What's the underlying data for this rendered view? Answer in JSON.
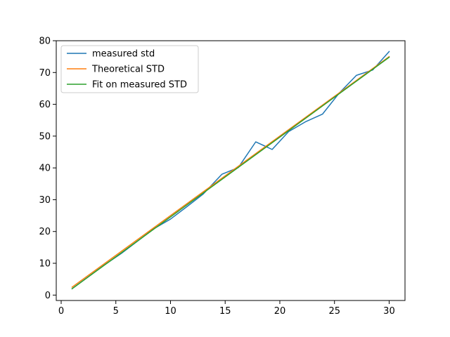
{
  "chart_data": {
    "type": "line",
    "title": "",
    "xlabel": "",
    "ylabel": "",
    "xlim": [
      -0.45,
      31.45
    ],
    "ylim": [
      -1.7,
      80
    ],
    "x_ticks": [
      0,
      5,
      10,
      15,
      20,
      25,
      30
    ],
    "y_ticks": [
      0,
      10,
      20,
      30,
      40,
      50,
      60,
      70,
      80
    ],
    "grid": false,
    "legend_position": "upper-left",
    "series": [
      {
        "name": "measured std",
        "color": "#1f77b4",
        "x": [
          1,
          2.5,
          4,
          5.5,
          7,
          8.5,
          10,
          11.5,
          13,
          14.7,
          16.2,
          17.8,
          19.3,
          20.8,
          22.4,
          23.9,
          25.4,
          27,
          28.5,
          30
        ],
        "y": [
          2.0,
          5.8,
          9.6,
          13.1,
          17.0,
          20.9,
          23.9,
          27.8,
          31.8,
          38.0,
          40.1,
          48.2,
          45.8,
          51.4,
          54.6,
          56.9,
          63.4,
          69.1,
          70.8,
          76.6
        ]
      },
      {
        "name": "Theoretical STD",
        "color": "#ff7f0e",
        "x": [
          1,
          30
        ],
        "y": [
          2.5,
          75.0
        ]
      },
      {
        "name": "Fit on measured STD",
        "color": "#2ca02c",
        "x": [
          1,
          30
        ],
        "y": [
          2.0,
          74.8
        ]
      }
    ]
  }
}
